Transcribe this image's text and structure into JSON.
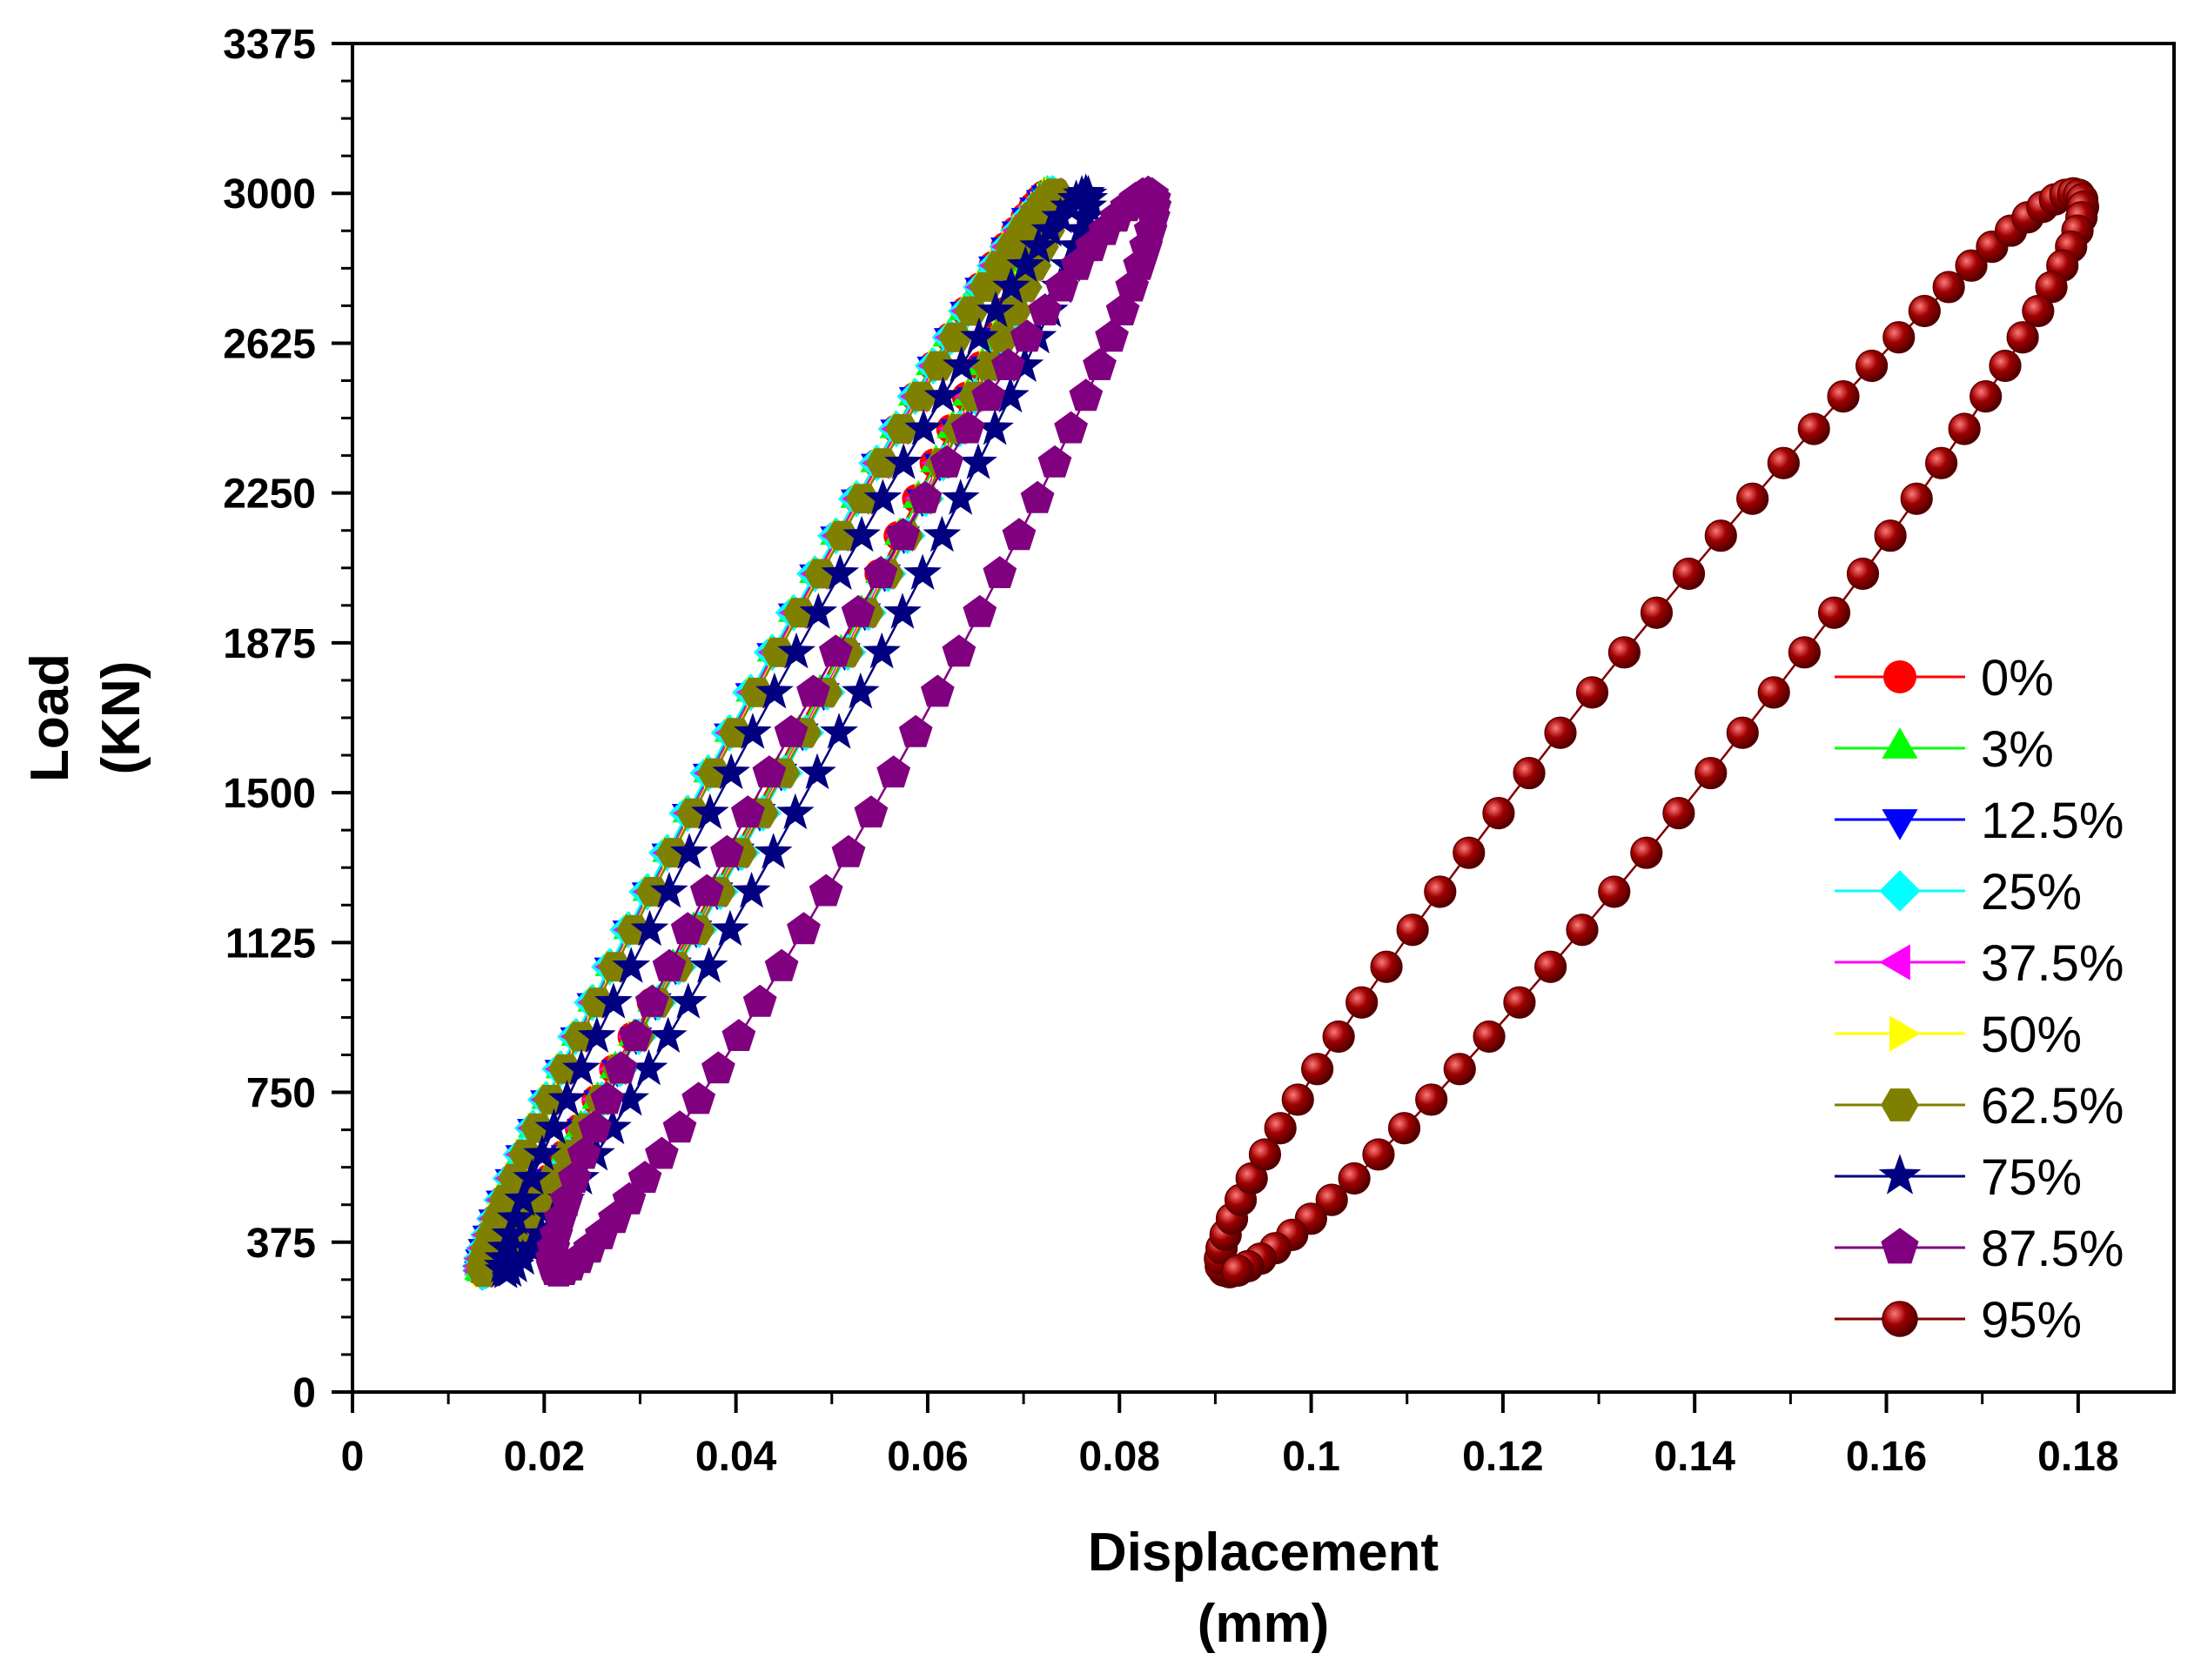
{
  "chart_data": {
    "type": "scatter",
    "title": "",
    "xlabel": [
      "Displacement",
      "(mm)"
    ],
    "ylabel": [
      "Load",
      "(KN)"
    ],
    "xlim": [
      0,
      0.19
    ],
    "ylim": [
      0,
      3375
    ],
    "xticks": [
      0,
      0.02,
      0.04,
      0.06,
      0.08,
      0.1,
      0.12,
      0.14,
      0.16,
      0.18
    ],
    "xtick_labels": [
      "0",
      "0.02",
      "0.04",
      "0.06",
      "0.08",
      "0.1",
      "0.12",
      "0.14",
      "0.16",
      "0.18"
    ],
    "yticks": [
      0,
      375,
      750,
      1125,
      1500,
      1875,
      2250,
      2625,
      3000,
      3375
    ],
    "ytick_labels": [
      "0",
      "375",
      "750",
      "1125",
      "1500",
      "1875",
      "2250",
      "2625",
      "3000",
      "3375"
    ],
    "legend_position": "right",
    "loop_load_range": [
      300,
      3000
    ],
    "series": [
      {
        "name": "0%",
        "marker": "circle",
        "color": "#ff0000",
        "x_min": 0.0135,
        "x_max": 0.0725,
        "offset": 0.0034
      },
      {
        "name": "3%",
        "marker": "triangle-up",
        "color": "#00ff00",
        "x_min": 0.0135,
        "x_max": 0.0725,
        "offset": 0.0036
      },
      {
        "name": "12.5%",
        "marker": "triangle-down",
        "color": "#0000ff",
        "x_min": 0.0135,
        "x_max": 0.0728,
        "offset": 0.0038
      },
      {
        "name": "25%",
        "marker": "diamond",
        "color": "#00ffff",
        "x_min": 0.0136,
        "x_max": 0.073,
        "offset": 0.004
      },
      {
        "name": "37.5%",
        "marker": "triangle-left",
        "color": "#ff00ff",
        "x_min": 0.0136,
        "x_max": 0.073,
        "offset": 0.0036
      },
      {
        "name": "50%",
        "marker": "triangle-right",
        "color": "#ffff00",
        "x_min": 0.0137,
        "x_max": 0.0732,
        "offset": 0.0036
      },
      {
        "name": "62.5%",
        "marker": "hexagon",
        "color": "#808000",
        "x_min": 0.0138,
        "x_max": 0.0733,
        "offset": 0.0036
      },
      {
        "name": "75%",
        "marker": "star",
        "color": "#000080",
        "x_min": 0.016,
        "x_max": 0.0765,
        "offset": 0.0045
      },
      {
        "name": "87.5%",
        "marker": "pentagon",
        "color": "#800080",
        "x_min": 0.0215,
        "x_max": 0.083,
        "offset": 0.0065
      },
      {
        "name": "95%",
        "marker": "sphere",
        "color": "#800000",
        "x_min": 0.0915,
        "x_max": 0.1795,
        "offset": 0.0095
      }
    ]
  }
}
